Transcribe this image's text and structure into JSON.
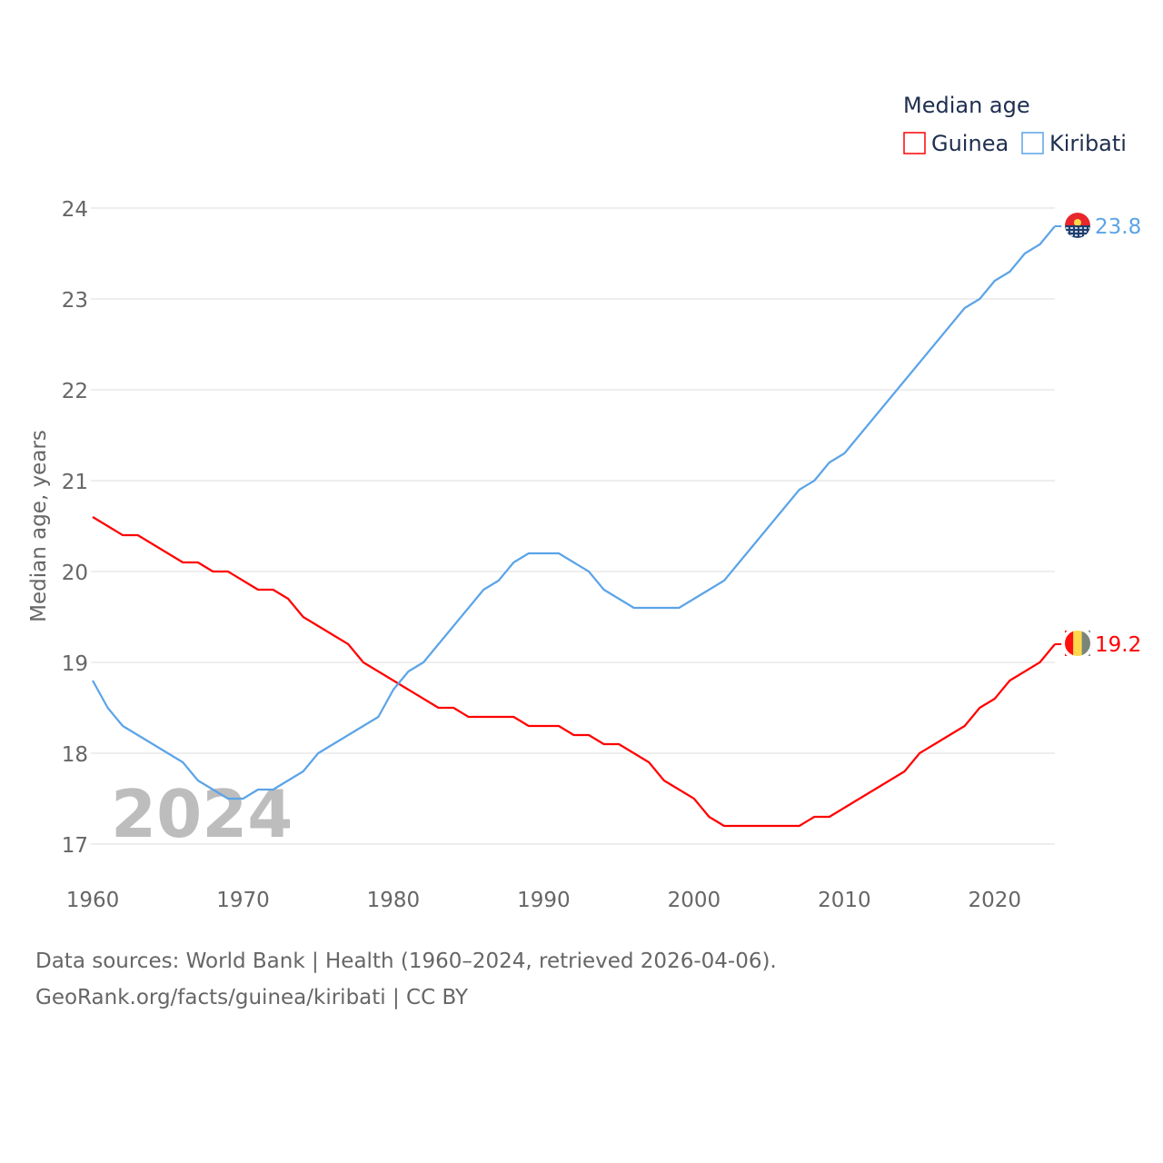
{
  "chart_data": {
    "type": "line",
    "title": "Median age",
    "xlabel": "",
    "ylabel": "Median age, years",
    "xlim": [
      1960,
      2024
    ],
    "ylim": [
      17,
      24
    ],
    "yticks": [
      17,
      18,
      19,
      20,
      21,
      22,
      23,
      24
    ],
    "xticks": [
      1960,
      1970,
      1980,
      1990,
      2000,
      2010,
      2020
    ],
    "grid": true,
    "legend_position": "top-right",
    "year_watermark": "2024",
    "x": [
      1960,
      1961,
      1962,
      1963,
      1964,
      1965,
      1966,
      1967,
      1968,
      1969,
      1970,
      1971,
      1972,
      1973,
      1974,
      1975,
      1976,
      1977,
      1978,
      1979,
      1980,
      1981,
      1982,
      1983,
      1984,
      1985,
      1986,
      1987,
      1988,
      1989,
      1990,
      1991,
      1992,
      1993,
      1994,
      1995,
      1996,
      1997,
      1998,
      1999,
      2000,
      2001,
      2002,
      2003,
      2004,
      2005,
      2006,
      2007,
      2008,
      2009,
      2010,
      2011,
      2012,
      2013,
      2014,
      2015,
      2016,
      2017,
      2018,
      2019,
      2020,
      2021,
      2022,
      2023,
      2024
    ],
    "series": [
      {
        "name": "Guinea",
        "color": "#ff0000",
        "end_label": "19.2",
        "values": [
          20.6,
          20.5,
          20.4,
          20.4,
          20.3,
          20.2,
          20.1,
          20.1,
          20.0,
          20.0,
          19.9,
          19.8,
          19.8,
          19.7,
          19.5,
          19.4,
          19.3,
          19.2,
          19.0,
          18.9,
          18.8,
          18.7,
          18.6,
          18.5,
          18.5,
          18.4,
          18.4,
          18.4,
          18.4,
          18.3,
          18.3,
          18.3,
          18.2,
          18.2,
          18.1,
          18.1,
          18.0,
          17.9,
          17.7,
          17.6,
          17.5,
          17.3,
          17.2,
          17.2,
          17.2,
          17.2,
          17.2,
          17.2,
          17.3,
          17.3,
          17.4,
          17.5,
          17.6,
          17.7,
          17.8,
          18.0,
          18.1,
          18.2,
          18.3,
          18.5,
          18.6,
          18.8,
          18.9,
          19.0,
          19.2
        ]
      },
      {
        "name": "Kiribati",
        "color": "#5ba4e8",
        "end_label": "23.8",
        "values": [
          18.8,
          18.5,
          18.3,
          18.2,
          18.1,
          18.0,
          17.9,
          17.7,
          17.6,
          17.5,
          17.5,
          17.6,
          17.6,
          17.7,
          17.8,
          18.0,
          18.1,
          18.2,
          18.3,
          18.4,
          18.7,
          18.9,
          19.0,
          19.2,
          19.4,
          19.6,
          19.8,
          19.9,
          20.1,
          20.2,
          20.2,
          20.2,
          20.1,
          20.0,
          19.8,
          19.7,
          19.6,
          19.6,
          19.6,
          19.6,
          19.7,
          19.8,
          19.9,
          20.1,
          20.3,
          20.5,
          20.7,
          20.9,
          21.0,
          21.2,
          21.3,
          21.5,
          21.7,
          21.9,
          22.1,
          22.3,
          22.5,
          22.7,
          22.9,
          23.0,
          23.2,
          23.3,
          23.5,
          23.6,
          23.8
        ]
      }
    ]
  },
  "footer": {
    "line1": "Data sources: World Bank | Health (1960–2024, retrieved 2026-04-06).",
    "line2": "GeoRank.org/facts/guinea/kiribati | CC BY"
  }
}
